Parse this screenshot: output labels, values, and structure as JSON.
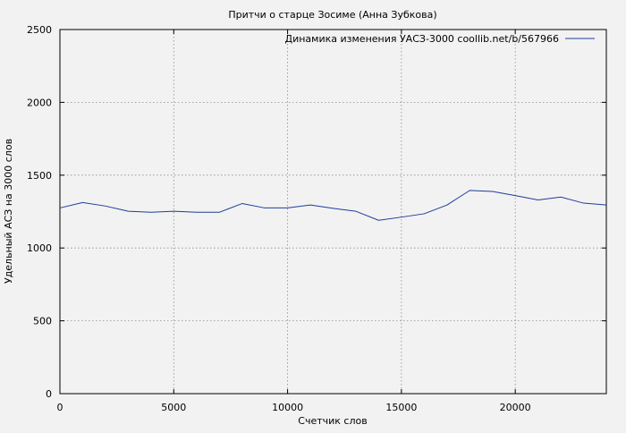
{
  "chart_data": {
    "type": "line",
    "title": "Притчи о старце Зосиме (Анна Зубкова)",
    "xlabel": "Счетчик слов",
    "ylabel": "Удельный АСЗ на 3000 слов",
    "xlim": [
      0,
      24000
    ],
    "ylim": [
      0,
      2500
    ],
    "xticks": [
      0,
      5000,
      10000,
      15000,
      20000
    ],
    "yticks": [
      0,
      500,
      1000,
      1500,
      2000,
      2500
    ],
    "grid": true,
    "legend_position": "top-right",
    "series": [
      {
        "name": "Динамика изменения УАСЗ-3000 coollib.net/b/567966",
        "color": "#1f3d99",
        "x": [
          0,
          1000,
          2000,
          3000,
          4000,
          5000,
          6000,
          7000,
          8000,
          9000,
          10000,
          11000,
          12000,
          13000,
          14000,
          15000,
          16000,
          17000,
          18000,
          19000,
          20000,
          21000,
          22000,
          23000,
          24000
        ],
        "y": [
          1275,
          1312,
          1288,
          1252,
          1245,
          1252,
          1245,
          1245,
          1305,
          1275,
          1275,
          1295,
          1272,
          1252,
          1190,
          1212,
          1235,
          1295,
          1395,
          1388,
          1360,
          1330,
          1350,
          1308,
          1295
        ]
      }
    ]
  }
}
